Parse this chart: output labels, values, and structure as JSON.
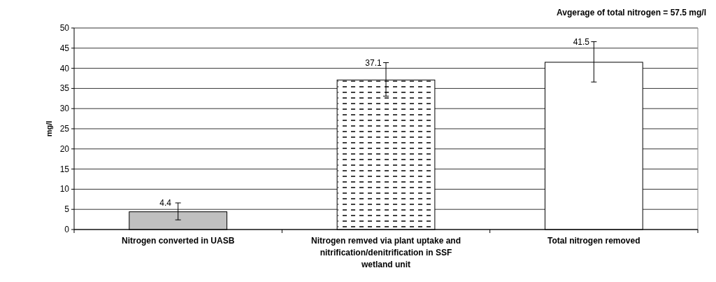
{
  "chart_data": {
    "type": "bar",
    "ylabel": "mg/l",
    "annotations": [
      "Avgerage of total nitrogen = 57.5 mg/l"
    ],
    "categories": [
      "Nitrogen converted in UASB",
      "Nitrogen remved via plant uptake and nitrification/denitrification in SSF wetland unit",
      "Total nitrogen removed"
    ],
    "values": [
      4.4,
      37.1,
      41.5
    ],
    "errors": [
      [
        2.4,
        6.6
      ],
      [
        33.1,
        41.4
      ],
      [
        36.6,
        46.6
      ]
    ],
    "colors": [
      "#c0c0c0",
      "#ffffff",
      "#ffffff"
    ],
    "ylim": [
      0,
      50
    ],
    "yticks": [
      0,
      5,
      10,
      15,
      20,
      25,
      30,
      35,
      40,
      45,
      50
    ],
    "grid": "y",
    "data_labels": true
  }
}
